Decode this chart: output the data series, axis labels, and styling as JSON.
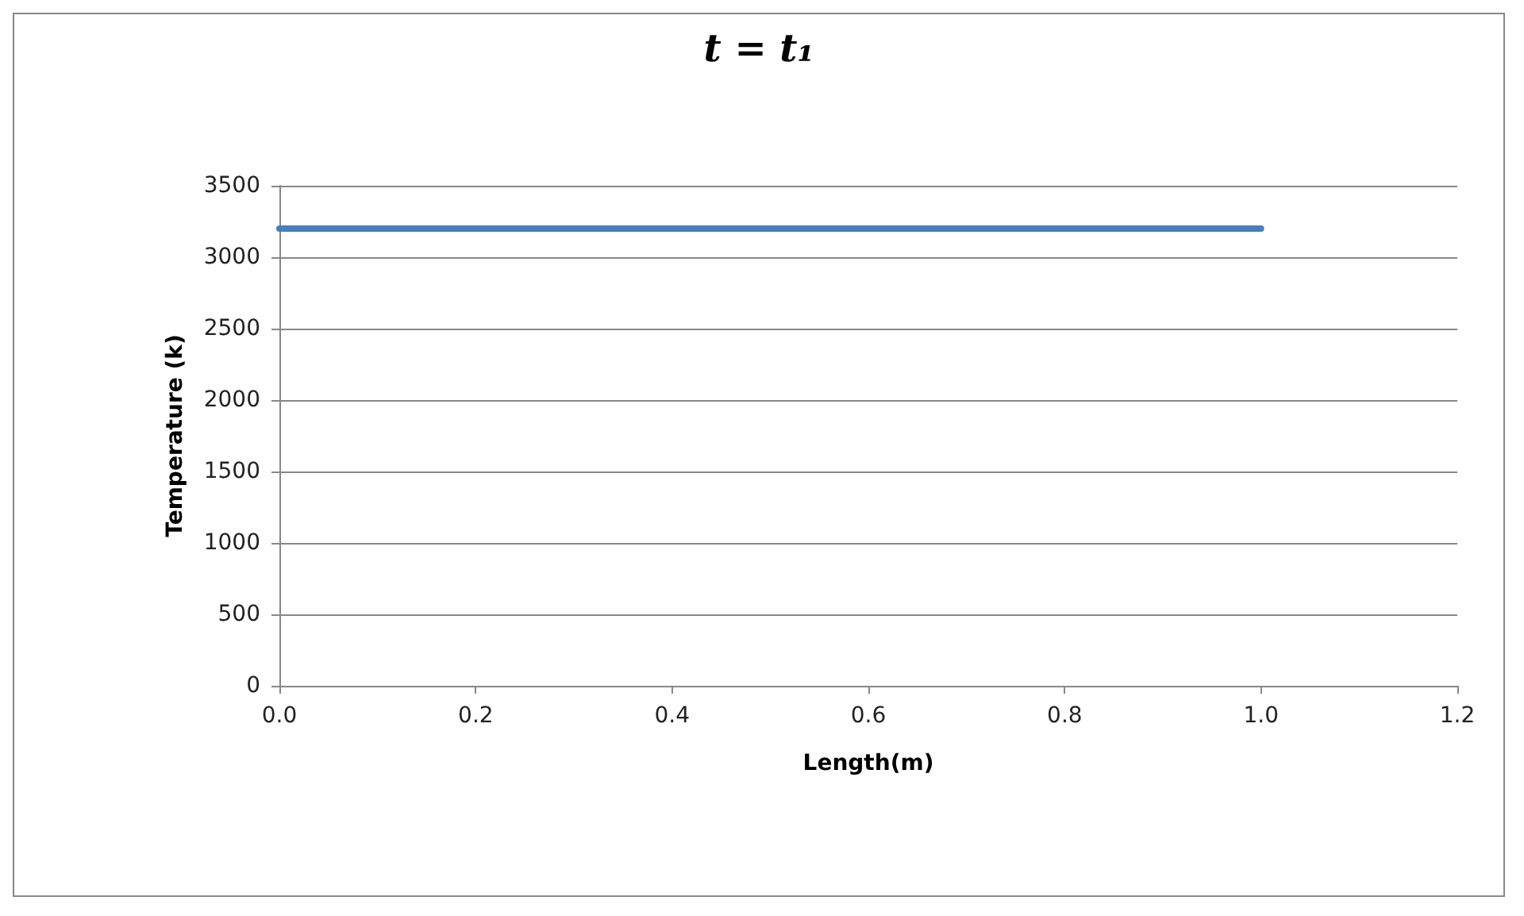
{
  "chart_data": {
    "type": "line",
    "title": "t = t₁",
    "xlabel": "Length(m)",
    "ylabel": "Temperature (k)",
    "x": [
      0,
      1.0
    ],
    "series": [
      {
        "color": "#4a7ebb",
        "values": [
          3200,
          3200
        ]
      }
    ],
    "xlim": [
      0,
      1.2
    ],
    "xticks": [
      {
        "value": 0,
        "label": "0.0"
      },
      0.2,
      0.4,
      0.6,
      0.8,
      {
        "value": 1,
        "label": "1.0"
      },
      1.2
    ],
    "ylim": [
      0,
      3500
    ],
    "yticks": [
      0,
      500,
      1000,
      1500,
      2000,
      2500,
      3000,
      3500
    ],
    "grid": "y",
    "marker": "none",
    "line_style": "solid"
  }
}
